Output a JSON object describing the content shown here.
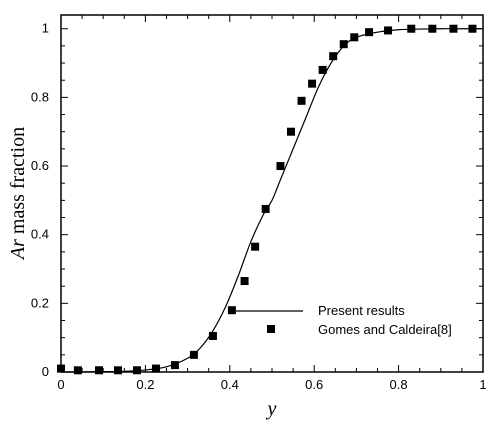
{
  "chart_data": {
    "type": "line",
    "xlabel": "y",
    "ylabel_italic": "Ar",
    "ylabel_rest": " mass fraction",
    "xlim": [
      0,
      1
    ],
    "ylim": [
      0,
      1.04
    ],
    "x_ticks": [
      "0",
      "0.2",
      "0.4",
      "0.6",
      "0.8",
      "1"
    ],
    "y_ticks": [
      "0",
      "0.2",
      "0.4",
      "0.6",
      "0.8",
      "1"
    ],
    "x_tick_values": [
      0,
      0.2,
      0.4,
      0.6,
      0.8,
      1
    ],
    "y_tick_values": [
      0,
      0.2,
      0.4,
      0.6,
      0.8,
      1
    ],
    "legend_position": "center-right",
    "series": [
      {
        "name": "Present results",
        "style": "line",
        "color": "#000000",
        "x": [
          0,
          0.05,
          0.1,
          0.15,
          0.2,
          0.25,
          0.3,
          0.33,
          0.36,
          0.39,
          0.42,
          0.45,
          0.48,
          0.5,
          0.52,
          0.55,
          0.58,
          0.61,
          0.64,
          0.67,
          0.7,
          0.75,
          0.8,
          0.85,
          0.9,
          0.95,
          1
        ],
        "y": [
          0.0,
          0.0,
          0.001,
          0.002,
          0.006,
          0.015,
          0.04,
          0.07,
          0.12,
          0.19,
          0.28,
          0.38,
          0.46,
          0.5,
          0.56,
          0.65,
          0.74,
          0.83,
          0.9,
          0.95,
          0.975,
          0.99,
          0.997,
          0.999,
          1.0,
          1.0,
          1.0
        ]
      },
      {
        "name": "Gomes and Caldeira[8]",
        "style": "square",
        "color": "#000000",
        "x": [
          0.0,
          0.04,
          0.09,
          0.135,
          0.18,
          0.225,
          0.27,
          0.315,
          0.36,
          0.405,
          0.435,
          0.46,
          0.485,
          0.52,
          0.545,
          0.57,
          0.595,
          0.62,
          0.645,
          0.67,
          0.695,
          0.73,
          0.775,
          0.83,
          0.88,
          0.93,
          0.975
        ],
        "y": [
          0.01,
          0.005,
          0.005,
          0.005,
          0.005,
          0.01,
          0.02,
          0.05,
          0.105,
          0.18,
          0.265,
          0.365,
          0.475,
          0.6,
          0.7,
          0.79,
          0.84,
          0.88,
          0.92,
          0.955,
          0.975,
          0.99,
          0.995,
          1.0,
          1.0,
          1.0,
          1.0
        ]
      }
    ]
  }
}
